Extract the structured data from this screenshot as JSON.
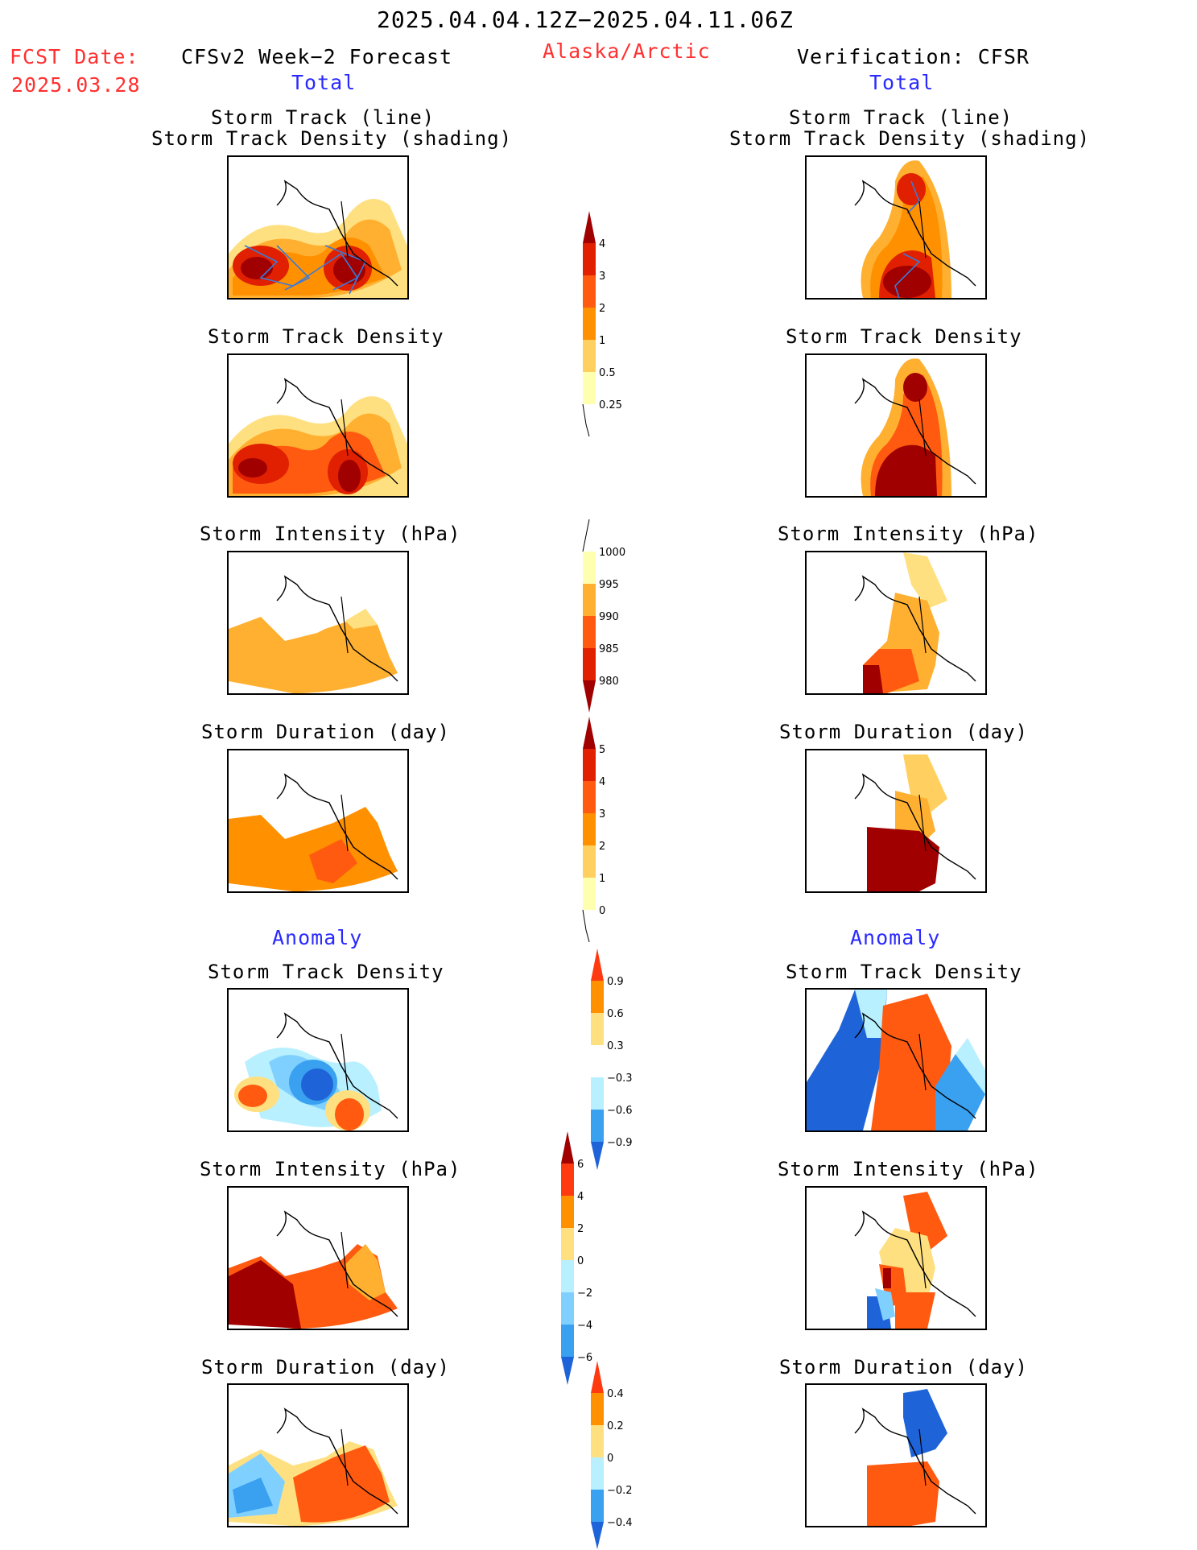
{
  "header": {
    "date_range": "2025.04.04.12Z−2025.04.11.06Z",
    "region": "Alaska/Arctic",
    "fcst_label": "FCST Date:",
    "fcst_date": "2025.03.28",
    "forecast_title": "CFSv2 Week−2 Forecast",
    "verification_title": "Verification: CFSR",
    "total_left": "Total",
    "total_right": "Total",
    "anomaly_left": "Anomaly",
    "anomaly_right": "Anomaly"
  },
  "panel_titles": {
    "storm_track_line": "Storm Track (line)",
    "storm_track_density_shading": "Storm Track Density (shading)",
    "storm_track_density": "Storm Track Density",
    "storm_intensity": "Storm Intensity (hPa)",
    "storm_duration": "Storm Duration (day)"
  },
  "colorbars": {
    "density_total": [
      "4",
      "3",
      "2",
      "1",
      "0.5",
      "0.25"
    ],
    "intensity_total": [
      "1000",
      "995",
      "990",
      "985",
      "980"
    ],
    "duration_total": [
      "5",
      "4",
      "3",
      "2",
      "1",
      "0"
    ],
    "density_anom": [
      "0.9",
      "0.6",
      "0.3",
      "−0.3",
      "−0.6",
      "−0.9"
    ],
    "intensity_anom": [
      "6",
      "4",
      "2",
      "0",
      "−2",
      "−4",
      "−6"
    ],
    "duration_anom": [
      "0.4",
      "0.2",
      "0",
      "−0.2",
      "−0.4"
    ]
  },
  "colors": {
    "title_red": "#ff3030",
    "title_blue": "#2a2aff",
    "warm_scale": [
      "#ffffb0",
      "#ffe080",
      "#ffb030",
      "#ff9000",
      "#ff5a10",
      "#e02000",
      "#a00000"
    ],
    "cool_scale": [
      "#b8f0ff",
      "#80d0ff",
      "#3aa0f0",
      "#1e64d8"
    ]
  }
}
